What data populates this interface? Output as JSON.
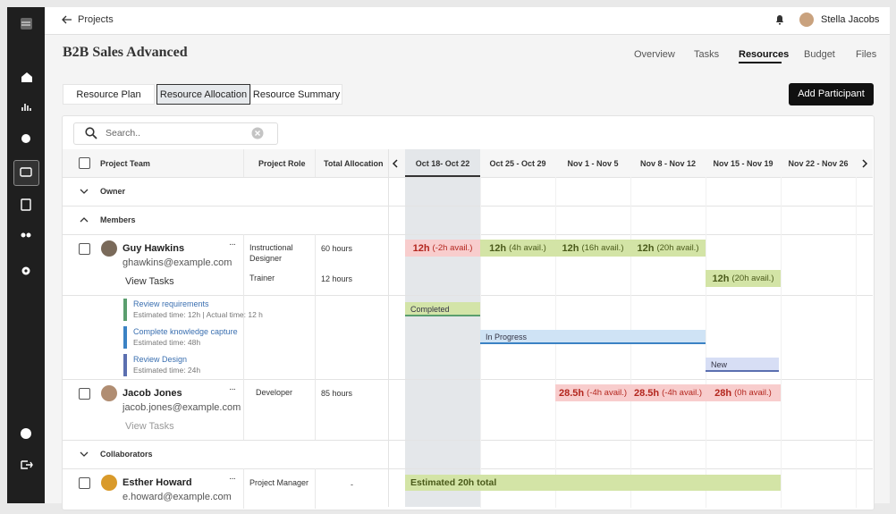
{
  "breadcrumb": "Projects",
  "user": "Stella Jacobs",
  "project_title": "B2B Sales Advanced",
  "nav": [
    {
      "label": "Overview",
      "active": false
    },
    {
      "label": "Tasks",
      "active": false
    },
    {
      "label": "Resources",
      "active": true
    },
    {
      "label": "Budget",
      "active": false
    },
    {
      "label": "Files",
      "active": false
    }
  ],
  "tabs": [
    {
      "label": "Resource Plan",
      "active": false
    },
    {
      "label": "Resource Allocation",
      "active": true
    },
    {
      "label": "Resource Summary",
      "active": false
    }
  ],
  "add_button": "Add Participant",
  "search_placeholder": "Search..",
  "table": {
    "columns": [
      "Project Team",
      "Project Role",
      "Total Allocation"
    ],
    "weeks": [
      "Oct 18- Oct 22",
      "Oct 25 - Oct 29",
      "Nov 1 - Nov 5",
      "Nov 8 - Nov 12",
      "Nov 15 - Nov 19",
      "Nov 22 - Nov 26"
    ],
    "groups": [
      "Owner",
      "Members",
      "Collaborators"
    ],
    "members": [
      {
        "name": "Guy Hawkins",
        "email": "ghawkins@example.com",
        "link": "View Tasks",
        "roles": [
          {
            "role": "Instructional Designer",
            "allocation": "60 hours",
            "weeks": [
              {
                "hours": "12h",
                "avail": "(-2h avail.)",
                "color": "#f8cdcd"
              },
              {
                "hours": "12h",
                "avail": "(4h avail.)",
                "color": "#d3e4a6"
              },
              {
                "hours": "12h",
                "avail": "(16h avail.)",
                "color": "#d3e4a6"
              },
              {
                "hours": "12h",
                "avail": "(20h avail.)",
                "color": "#d3e4a6"
              },
              null,
              null
            ]
          },
          {
            "role": "Trainer",
            "allocation": "12 hours",
            "weeks": [
              null,
              null,
              null,
              null,
              {
                "hours": "12h",
                "avail": "(20h avail.)",
                "color": "#d3e4a6"
              },
              null
            ]
          }
        ],
        "tasks": [
          {
            "name": "Review requirements",
            "detail": "Estimated time: 12h | Actual time: 12 h",
            "status": "Completed",
            "color": "#5a9e6e"
          },
          {
            "name": "Complete knowledge capture",
            "detail": "Estimated time: 48h",
            "status": "In Progress",
            "color": "#3b82c4"
          },
          {
            "name": "Review Design",
            "detail": "Estimated time: 24h",
            "status": "New",
            "color": "#5b6fb0"
          }
        ]
      },
      {
        "name": "Jacob Jones",
        "email": "jacob.jones@example.com",
        "link": "View Tasks",
        "roles": [
          {
            "role": "Developer",
            "allocation": "85 hours",
            "weeks": [
              null,
              null,
              {
                "hours": "28.5h",
                "avail": "(-4h avail.)",
                "color": "#f8cdcd"
              },
              {
                "hours": "28.5h",
                "avail": "(-4h avail.)",
                "color": "#f8cdcd"
              },
              {
                "hours": "28h",
                "avail": "(0h avail.)",
                "color": "#f8cdcd"
              },
              null
            ]
          }
        ]
      }
    ],
    "collaborators": [
      {
        "name": "Esther Howard",
        "email": "e.howard@example.com",
        "role": "Project Manager",
        "allocation": "-",
        "estimate": "Estimated 20h total"
      }
    ]
  }
}
